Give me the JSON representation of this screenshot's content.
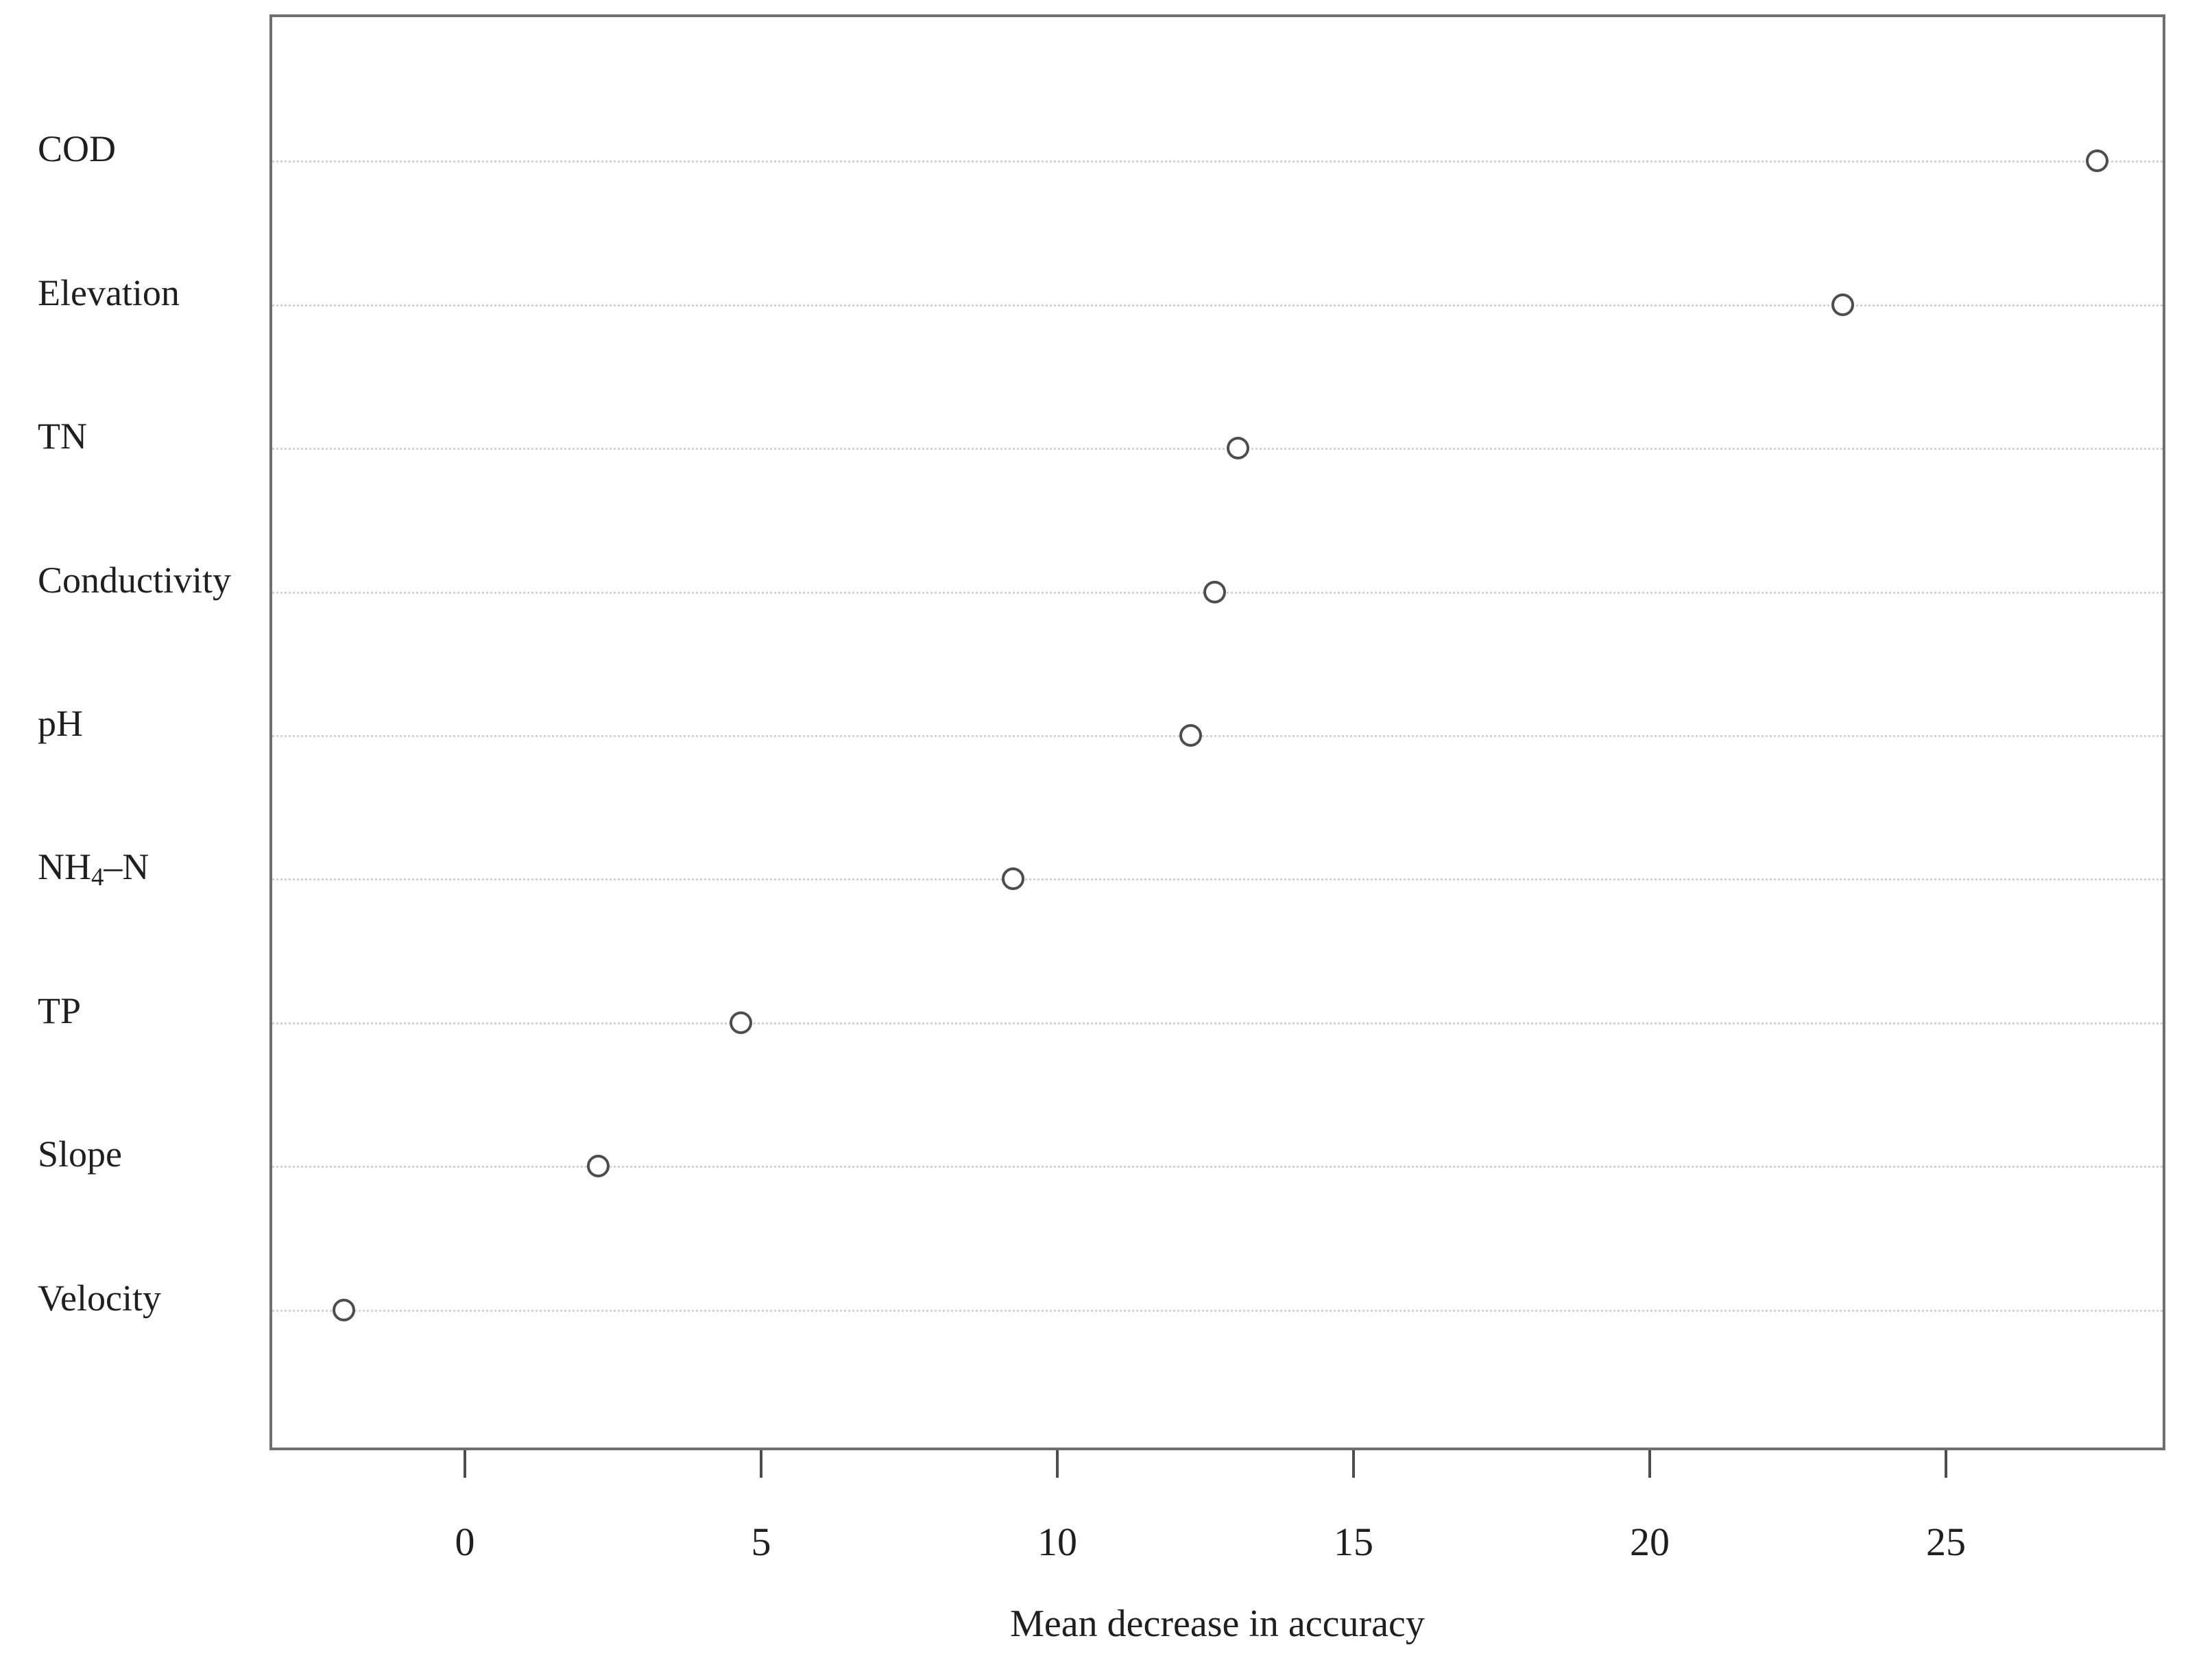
{
  "chart_data": {
    "type": "scatter",
    "subtype": "dot-plot-variable-importance",
    "title": "",
    "xlabel": "Mean decrease in accuracy",
    "ylabel": "",
    "categories": [
      "COD",
      "Elevation",
      "TN",
      "Conductivity",
      "pH",
      "NH₄–N",
      "TP",
      "Slope",
      "Velocity"
    ],
    "values": [
      27.5,
      23.2,
      13.0,
      12.6,
      12.2,
      9.2,
      4.6,
      2.2,
      -2.1
    ],
    "x_ticks": [
      0,
      5,
      10,
      15,
      20,
      25
    ],
    "xlim": [
      -3.3,
      28.7
    ],
    "grid": "dotted-horizontal",
    "legend": "none",
    "point_style": "open-circle",
    "colors": {
      "point_stroke": "#4d4d4d",
      "grid_line": "#d2d2d2",
      "box_border": "#6f6f6f",
      "text": "#1f1f1f",
      "background": "#ffffff"
    }
  }
}
